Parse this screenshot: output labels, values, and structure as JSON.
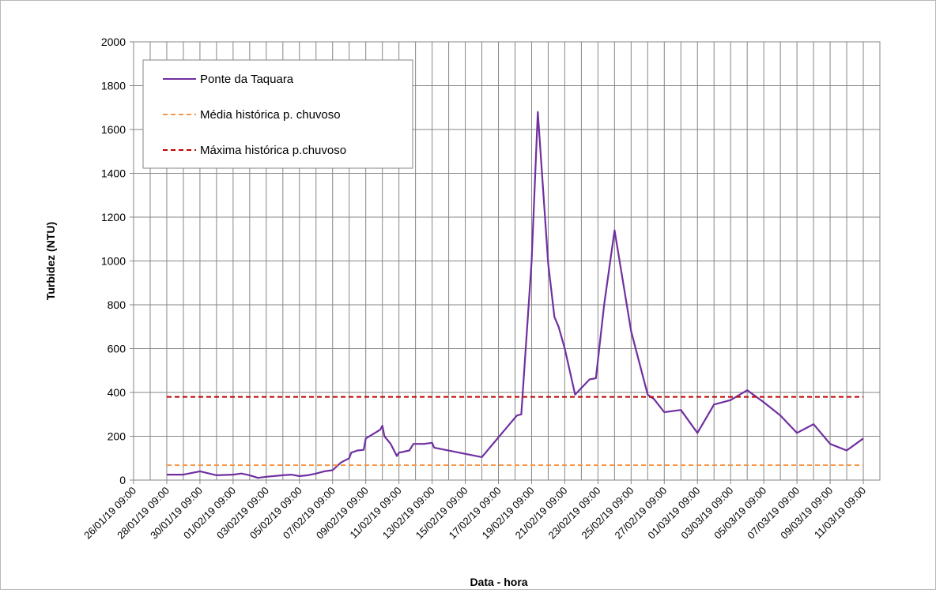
{
  "chart_data": {
    "type": "line",
    "xlabel": "Data - hora",
    "ylabel": "Turbidez (NTU)",
    "ylim": [
      0,
      2000
    ],
    "yticks": [
      0,
      200,
      400,
      600,
      800,
      1000,
      1200,
      1400,
      1600,
      1800,
      2000
    ],
    "x_tick_labels": [
      "26/01/19 09:00",
      "28/01/19 09:00",
      "30/01/19 09:00",
      "01/02/19 09:00",
      "03/02/19 09:00",
      "05/02/19 09:00",
      "07/02/19 09:00",
      "09/02/19 09:00",
      "11/02/19 09:00",
      "13/02/19 09:00",
      "15/02/19 09:00",
      "17/02/19 09:00",
      "19/02/19 09:00",
      "21/02/19 09:00",
      "23/02/19 09:00",
      "25/02/19 09:00",
      "27/02/19 09:00",
      "01/03/19 09:00",
      "03/03/19 09:00",
      "05/03/19 09:00",
      "07/03/19 09:00",
      "09/03/19 09:00",
      "11/03/19 09:00"
    ],
    "grid": true,
    "legend_position": "top-left",
    "series": [
      {
        "name": "Ponte da Taquara",
        "color": "#7030a0",
        "style": "solid",
        "points": [
          [
            "2019-01-28 09:00",
            25
          ],
          [
            "2019-01-29 09:00",
            25
          ],
          [
            "2019-01-30 09:00",
            40
          ],
          [
            "2019-01-31 09:00",
            22
          ],
          [
            "2019-02-01 09:00",
            25
          ],
          [
            "2019-02-01 21:00",
            30
          ],
          [
            "2019-02-02 09:00",
            22
          ],
          [
            "2019-02-02 21:00",
            10
          ],
          [
            "2019-02-03 09:00",
            15
          ],
          [
            "2019-02-04 09:00",
            22
          ],
          [
            "2019-02-04 21:00",
            25
          ],
          [
            "2019-02-05 09:00",
            18
          ],
          [
            "2019-02-05 21:00",
            22
          ],
          [
            "2019-02-06 09:00",
            30
          ],
          [
            "2019-02-06 21:00",
            40
          ],
          [
            "2019-02-07 09:00",
            45
          ],
          [
            "2019-02-07 21:00",
            80
          ],
          [
            "2019-02-08 09:00",
            100
          ],
          [
            "2019-02-08 12:00",
            125
          ],
          [
            "2019-02-08 21:00",
            135
          ],
          [
            "2019-02-09 06:00",
            138
          ],
          [
            "2019-02-09 09:00",
            190
          ],
          [
            "2019-02-10 06:00",
            230
          ],
          [
            "2019-02-10 09:00",
            248
          ],
          [
            "2019-02-10 12:00",
            200
          ],
          [
            "2019-02-10 21:00",
            165
          ],
          [
            "2019-02-11 06:00",
            110
          ],
          [
            "2019-02-11 09:00",
            125
          ],
          [
            "2019-02-12 00:00",
            135
          ],
          [
            "2019-02-12 06:00",
            165
          ],
          [
            "2019-02-12 21:00",
            165
          ],
          [
            "2019-02-13 09:00",
            170
          ],
          [
            "2019-02-13 12:00",
            148
          ],
          [
            "2019-02-16 09:00",
            105
          ],
          [
            "2019-02-18 09:00",
            285
          ],
          [
            "2019-02-18 12:00",
            295
          ],
          [
            "2019-02-18 18:00",
            300
          ],
          [
            "2019-02-19 09:00",
            1000
          ],
          [
            "2019-02-19 18:00",
            1680
          ],
          [
            "2019-02-20 00:00",
            1400
          ],
          [
            "2019-02-20 09:00",
            990
          ],
          [
            "2019-02-20 18:00",
            745
          ],
          [
            "2019-02-21 00:00",
            700
          ],
          [
            "2019-02-21 09:00",
            600
          ],
          [
            "2019-02-22 00:00",
            390
          ],
          [
            "2019-02-22 09:00",
            420
          ],
          [
            "2019-02-22 21:00",
            460
          ],
          [
            "2019-02-23 06:00",
            465
          ],
          [
            "2019-02-23 18:00",
            800
          ],
          [
            "2019-02-24 09:00",
            1140
          ],
          [
            "2019-02-25 09:00",
            680
          ],
          [
            "2019-02-26 09:00",
            390
          ],
          [
            "2019-02-26 18:00",
            370
          ],
          [
            "2019-02-27 09:00",
            310
          ],
          [
            "2019-02-28 09:00",
            320
          ],
          [
            "2019-03-01 09:00",
            215
          ],
          [
            "2019-03-02 09:00",
            345
          ],
          [
            "2019-03-03 09:00",
            365
          ],
          [
            "2019-03-04 09:00",
            410
          ],
          [
            "2019-03-05 09:00",
            355
          ],
          [
            "2019-03-06 09:00",
            295
          ],
          [
            "2019-03-07 09:00",
            215
          ],
          [
            "2019-03-08 09:00",
            255
          ],
          [
            "2019-03-09 09:00",
            165
          ],
          [
            "2019-03-10 09:00",
            135
          ],
          [
            "2019-03-11 09:00",
            190
          ]
        ]
      },
      {
        "name": "Média histórica p. chuvoso",
        "color": "#f79646",
        "style": "dashed",
        "points": [
          [
            "2019-01-28 09:00",
            68
          ],
          [
            "2019-03-11 09:00",
            68
          ]
        ]
      },
      {
        "name": "Máxima histórica p.chuvoso",
        "color": "#c00000",
        "style": "dashed",
        "points": [
          [
            "2019-01-28 09:00",
            380
          ],
          [
            "2019-03-11 09:00",
            380
          ]
        ]
      }
    ]
  }
}
